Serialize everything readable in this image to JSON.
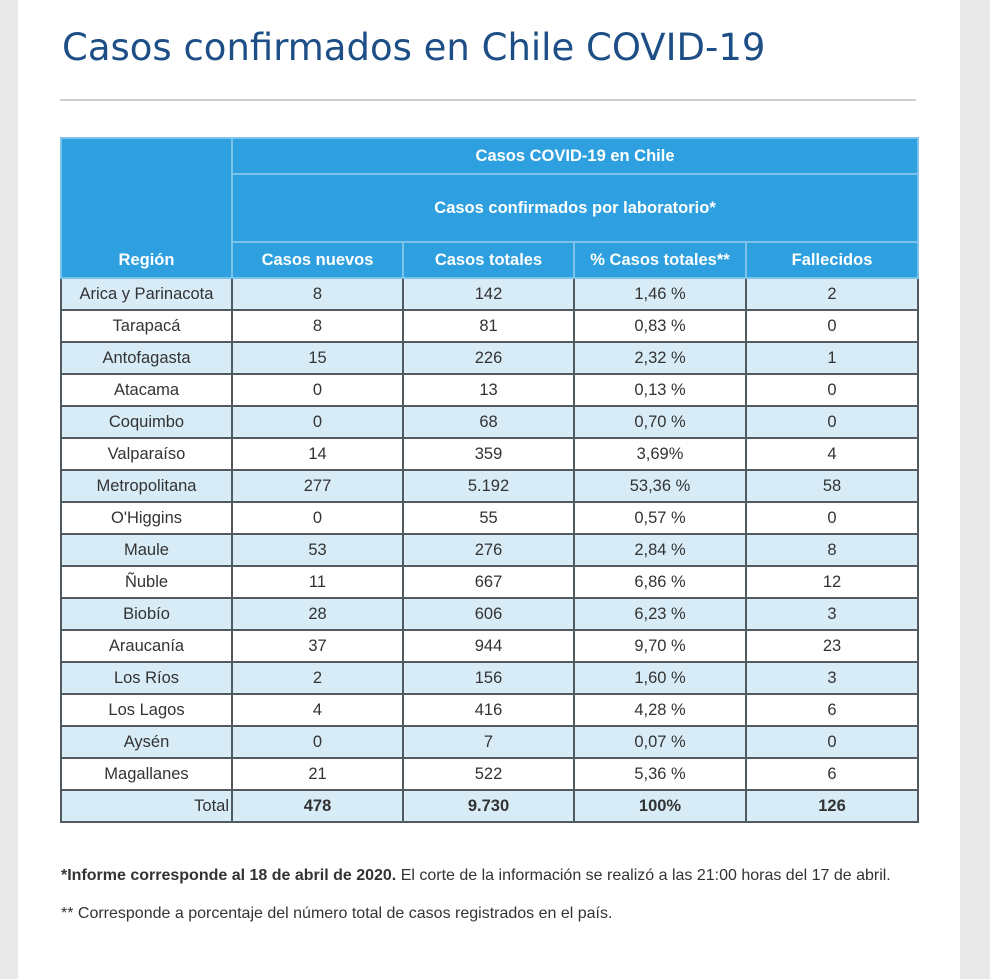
{
  "page": {
    "title": "Casos confirmados en Chile COVID-19"
  },
  "table": {
    "super_header": "Casos COVID-19 en Chile",
    "sub_header": "Casos confirmados por laboratorio*",
    "columns": [
      "Región",
      "Casos nuevos",
      "Casos totales",
      "% Casos totales**",
      "Fallecidos"
    ],
    "rows": [
      [
        "Arica y Parinacota",
        "8",
        "142",
        "1,46 %",
        "2"
      ],
      [
        "Tarapacá",
        "8",
        "81",
        "0,83 %",
        "0"
      ],
      [
        "Antofagasta",
        "15",
        "226",
        "2,32 %",
        "1"
      ],
      [
        "Atacama",
        "0",
        "13",
        "0,13 %",
        "0"
      ],
      [
        "Coquimbo",
        "0",
        "68",
        "0,70 %",
        "0"
      ],
      [
        "Valparaíso",
        "14",
        "359",
        "3,69%",
        "4"
      ],
      [
        "Metropolitana",
        "277",
        "5.192",
        "53,36 %",
        "58"
      ],
      [
        "O'Higgins",
        "0",
        "55",
        "0,57 %",
        "0"
      ],
      [
        "Maule",
        "53",
        "276",
        "2,84 %",
        "8"
      ],
      [
        "Ñuble",
        "11",
        "667",
        "6,86 %",
        "12"
      ],
      [
        "Biobío",
        "28",
        "606",
        "6,23 %",
        "3"
      ],
      [
        "Araucanía",
        "37",
        "944",
        "9,70 %",
        "23"
      ],
      [
        "Los Ríos",
        "2",
        "156",
        "1,60 %",
        "3"
      ],
      [
        "Los Lagos",
        "4",
        "416",
        "4,28 %",
        "6"
      ],
      [
        "Aysén",
        "0",
        "7",
        "0,07 %",
        "0"
      ],
      [
        "Magallanes",
        "21",
        "522",
        "5,36 %",
        "6"
      ]
    ],
    "total": [
      "Total",
      "478",
      "9.730",
      "100%",
      "126"
    ]
  },
  "notes": {
    "note1_bold": "*Informe corresponde al 18 de abril de 2020.",
    "note1_rest": " El corte de la información se realizó a las 21:00 horas del 17 de abril.",
    "note2": "** Corresponde a porcentaje del número total de casos registrados en el país."
  },
  "colors": {
    "title": "#1d4e86",
    "header_bg": "#2ea0e0",
    "row_alt_bg": "#d8ecf8"
  }
}
